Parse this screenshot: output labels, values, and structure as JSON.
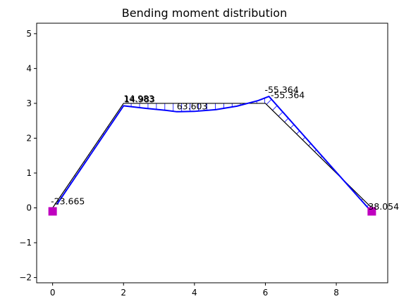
{
  "chart_data": {
    "type": "line",
    "title": "Bending moment distribution",
    "xlim": [
      -0.45,
      9.45
    ],
    "ylim": [
      -2.15,
      5.3
    ],
    "xticks": [
      0,
      2,
      4,
      6,
      8
    ],
    "yticks": [
      -2,
      -1,
      0,
      1,
      2,
      3,
      4,
      5
    ],
    "xlabel": "",
    "ylabel": "",
    "grid": false,
    "structure": [
      [
        0,
        0
      ],
      [
        2,
        3
      ],
      [
        6,
        3
      ],
      [
        9,
        0
      ]
    ],
    "moment_curve": [
      [
        0.12,
        0.1
      ],
      [
        2.0,
        2.93
      ],
      [
        2.6,
        2.86
      ],
      [
        3.2,
        2.8
      ],
      [
        3.5,
        2.76
      ],
      [
        4.0,
        2.77
      ],
      [
        4.6,
        2.82
      ],
      [
        5.2,
        2.92
      ],
      [
        5.8,
        3.08
      ],
      [
        6.1,
        3.2
      ],
      [
        9.0,
        -0.12
      ]
    ],
    "supports": [
      [
        0,
        -0.1
      ],
      [
        9,
        -0.1
      ]
    ],
    "labels": [
      {
        "text": "-23.665",
        "x": -0.05,
        "y": 0.1
      },
      {
        "text": "14.983",
        "x": 2.0,
        "y": 3.05
      },
      {
        "text": "14.983",
        "x": 2.02,
        "y": 3.03
      },
      {
        "text": "63.603",
        "x": 3.5,
        "y": 2.83
      },
      {
        "text": "-55.364",
        "x": 5.98,
        "y": 3.3
      },
      {
        "text": "-55.364",
        "x": 6.15,
        "y": 3.15
      },
      {
        "text": "38.054",
        "x": 8.9,
        "y": -0.05
      }
    ],
    "colors": {
      "structure": "#000000",
      "moment": "#0000ff",
      "support": "#bf00bf"
    }
  }
}
